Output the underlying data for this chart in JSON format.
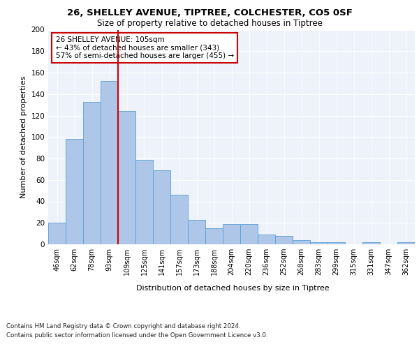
{
  "title1": "26, SHELLEY AVENUE, TIPTREE, COLCHESTER, CO5 0SF",
  "title2": "Size of property relative to detached houses in Tiptree",
  "xlabel": "Distribution of detached houses by size in Tiptree",
  "ylabel": "Number of detached properties",
  "categories": [
    "46sqm",
    "62sqm",
    "78sqm",
    "93sqm",
    "109sqm",
    "125sqm",
    "141sqm",
    "157sqm",
    "173sqm",
    "188sqm",
    "204sqm",
    "220sqm",
    "236sqm",
    "252sqm",
    "268sqm",
    "283sqm",
    "299sqm",
    "315sqm",
    "331sqm",
    "347sqm",
    "362sqm"
  ],
  "values": [
    20,
    98,
    133,
    152,
    124,
    79,
    69,
    46,
    23,
    15,
    19,
    19,
    9,
    8,
    4,
    2,
    2,
    0,
    2,
    0,
    2
  ],
  "bar_color": "#aec6e8",
  "bar_edge_color": "#5a9fd4",
  "annotation_line1": "26 SHELLEY AVENUE: 105sqm",
  "annotation_line2": "← 43% of detached houses are smaller (343)",
  "annotation_line3": "57% of semi-detached houses are larger (455) →",
  "annotation_box_edge_color": "#cc0000",
  "highlight_line_color": "#cc0000",
  "ylim": [
    0,
    200
  ],
  "yticks": [
    0,
    20,
    40,
    60,
    80,
    100,
    120,
    140,
    160,
    180,
    200
  ],
  "background_color": "#eef2fb",
  "footer_line1": "Contains HM Land Registry data © Crown copyright and database right 2024.",
  "footer_line2": "Contains public sector information licensed under the Open Government Licence v3.0."
}
